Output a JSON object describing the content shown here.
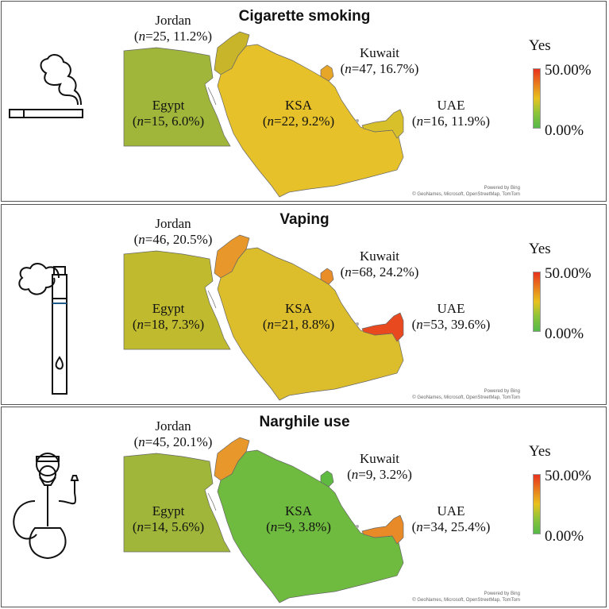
{
  "legend": {
    "title": "Yes",
    "max_label": "50.00%",
    "min_label": "0.00%",
    "gradient_colors": [
      "#e8321e",
      "#e87b1e",
      "#e8c21e",
      "#8bc43a",
      "#54b948"
    ]
  },
  "attribution": {
    "powered_by": "Powered by Bing",
    "sources": "© GeoNames, Microsoft, OpenStreetMap, TomTom"
  },
  "panels": [
    {
      "title": "Cigarette smoking",
      "icon": "cigarette-icon",
      "regions": {
        "jordan": {
          "name": "Jordan",
          "n": "n",
          "count": "=25, 11.2%)",
          "color": "#c9b52a"
        },
        "egypt": {
          "name": "Egypt",
          "n": "n",
          "count": "=15, 6.0%)",
          "color": "#9fb63a"
        },
        "ksa": {
          "name": "KSA",
          "n": "n",
          "count": "=22, 9.2%)",
          "color": "#e6c12a"
        },
        "kuwait": {
          "name": "Kuwait",
          "n": "n",
          "count": "=47, 16.7%)",
          "color": "#e8a629"
        },
        "uae": {
          "name": "UAE",
          "n": "n",
          "count": "=16, 11.9%)",
          "color": "#d8c02a"
        }
      }
    },
    {
      "title": "Vaping",
      "icon": "vape-pen-icon",
      "regions": {
        "jordan": {
          "name": "Jordan",
          "n": "n",
          "count": "=46, 20.5%)",
          "color": "#e8982a"
        },
        "egypt": {
          "name": "Egypt",
          "n": "n",
          "count": "=18, 7.3%)",
          "color": "#c0bb2e"
        },
        "ksa": {
          "name": "KSA",
          "n": "n",
          "count": "=21, 8.8%)",
          "color": "#dcbd2c"
        },
        "kuwait": {
          "name": "Kuwait",
          "n": "n",
          "count": "=68, 24.2%)",
          "color": "#e88d28"
        },
        "uae": {
          "name": "UAE",
          "n": "n",
          "count": "=53, 39.6%)",
          "color": "#e9491f"
        }
      }
    },
    {
      "title": "Narghile use",
      "icon": "hookah-icon",
      "regions": {
        "jordan": {
          "name": "Jordan",
          "n": "n",
          "count": "=45, 20.1%)",
          "color": "#e8982a"
        },
        "egypt": {
          "name": "Egypt",
          "n": "n",
          "count": "=14, 5.6%)",
          "color": "#9fb63a"
        },
        "ksa": {
          "name": "KSA",
          "n": "n",
          "count": "=9, 3.8%)",
          "color": "#6fbb3f"
        },
        "kuwait": {
          "name": "Kuwait",
          "n": "n",
          "count": "=9, 3.2%)",
          "color": "#5fba42"
        },
        "uae": {
          "name": "UAE",
          "n": "n",
          "count": "=34, 25.4%)",
          "color": "#e88a28"
        }
      }
    }
  ]
}
